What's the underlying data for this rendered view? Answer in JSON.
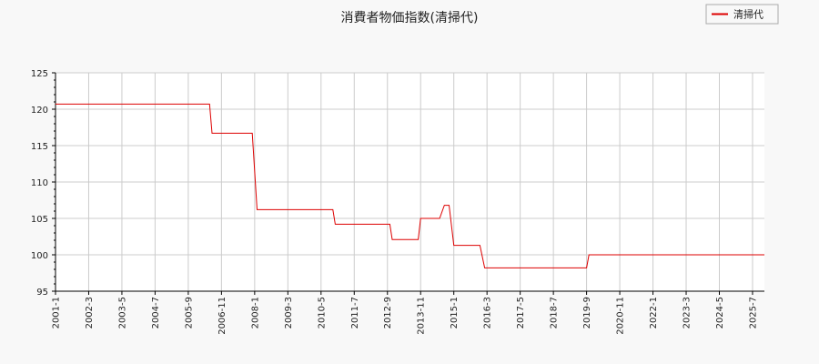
{
  "chart_data": {
    "type": "line",
    "title": "消費者物価指数(清掃代)",
    "xlabel": "",
    "ylabel": "",
    "ylim": [
      95,
      125
    ],
    "yticks": [
      95,
      100,
      105,
      110,
      115,
      120,
      125
    ],
    "xticks": [
      "2001-1",
      "2002-3",
      "2003-5",
      "2004-7",
      "2005-9",
      "2006-11",
      "2008-1",
      "2009-3",
      "2010-5",
      "2011-7",
      "2012-9",
      "2013-11",
      "2015-1",
      "2016-3",
      "2017-5",
      "2018-7",
      "2019-9",
      "2020-11",
      "2022-1",
      "2023-3",
      "2024-5",
      "2025-7"
    ],
    "xlim": [
      "2001-01",
      "2025-12"
    ],
    "grid": true,
    "legend_position": "top-right",
    "series": [
      {
        "name": "清掃代",
        "color": "#dd0000",
        "points": [
          [
            "2001-01",
            120.7
          ],
          [
            "2006-06",
            120.7
          ],
          [
            "2006-07",
            116.7
          ],
          [
            "2007-12",
            116.7
          ],
          [
            "2008-02",
            106.2
          ],
          [
            "2010-10",
            106.2
          ],
          [
            "2010-11",
            104.2
          ],
          [
            "2012-10",
            104.2
          ],
          [
            "2012-11",
            102.1
          ],
          [
            "2013-10",
            102.1
          ],
          [
            "2013-11",
            105.0
          ],
          [
            "2014-07",
            105.0
          ],
          [
            "2014-09",
            106.8
          ],
          [
            "2014-11",
            106.8
          ],
          [
            "2015-01",
            101.3
          ],
          [
            "2015-12",
            101.3
          ],
          [
            "2016-02",
            98.2
          ],
          [
            "2019-09",
            98.2
          ],
          [
            "2019-10",
            100.0
          ],
          [
            "2025-12",
            100.0
          ]
        ]
      }
    ]
  }
}
